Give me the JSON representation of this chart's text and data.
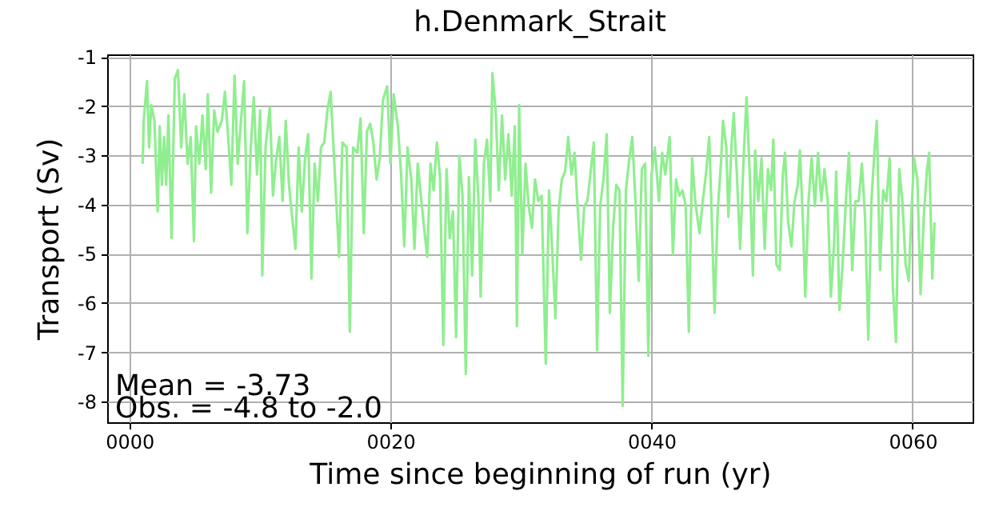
{
  "chart_data": {
    "type": "line",
    "title": "h.Denmark_Strait",
    "xlabel": "Time since beginning of run (yr)",
    "ylabel": "Transport (Sv)",
    "annotations": [
      "Mean = -3.73",
      "Obs. = -4.8 to -2.0"
    ],
    "xlim": [
      -1.7,
      64.6
    ],
    "ylim": [
      -8.42,
      -0.95
    ],
    "xticks": [
      {
        "value": 0,
        "label": "0000"
      },
      {
        "value": 20,
        "label": "0020"
      },
      {
        "value": 40,
        "label": "0040"
      },
      {
        "value": 60,
        "label": "0060"
      }
    ],
    "yticks": [
      -8,
      -7,
      -6,
      -5,
      -4,
      -3,
      -2,
      -1
    ],
    "grid": true,
    "line_style": "solid",
    "series": [
      {
        "color": "#90ee90",
        "x": [
          1.02,
          1.1,
          1.35,
          1.51,
          1.68,
          1.92,
          2.17,
          2.33,
          2.49,
          2.66,
          2.82,
          2.99,
          3.23,
          3.48,
          3.72,
          3.97,
          4.21,
          4.46,
          4.7,
          4.95,
          5.11,
          5.36,
          5.6,
          5.85,
          6.01,
          6.26,
          6.5,
          6.75,
          7.08,
          7.32,
          7.57,
          7.81,
          8.06,
          8.3,
          8.55,
          8.79,
          9.04,
          9.28,
          9.53,
          9.78,
          10.02,
          10.18,
          10.43,
          10.76,
          11.0,
          11.25,
          11.49,
          11.74,
          11.98,
          12.23,
          12.47,
          12.72,
          12.97,
          13.21,
          13.46,
          13.7,
          13.95,
          14.19,
          14.44,
          14.68,
          14.93,
          15.17,
          15.42,
          15.66,
          15.91,
          16.07,
          16.32,
          16.65,
          16.89,
          17.14,
          17.46,
          17.71,
          17.96,
          18.2,
          18.45,
          18.69,
          18.94,
          19.18,
          19.43,
          19.75,
          20.0,
          20.25,
          20.57,
          20.82,
          21.06,
          21.31,
          21.6,
          21.84,
          22.09,
          22.33,
          22.58,
          22.82,
          23.07,
          23.31,
          23.56,
          23.8,
          24.05,
          24.3,
          24.54,
          24.79,
          25.03,
          25.28,
          25.52,
          25.77,
          26.01,
          26.26,
          26.5,
          26.75,
          26.91,
          27.16,
          27.4,
          27.65,
          27.81,
          28.06,
          28.3,
          28.55,
          28.79,
          29.04,
          29.29,
          29.53,
          29.69,
          29.86,
          30.1,
          30.35,
          30.59,
          30.84,
          31.08,
          31.33,
          31.58,
          31.9,
          32.15,
          32.39,
          32.64,
          32.88,
          33.13,
          33.38,
          33.62,
          33.87,
          34.11,
          34.36,
          34.6,
          34.85,
          35.09,
          35.34,
          35.58,
          35.83,
          36.07,
          36.32,
          36.57,
          36.81,
          37.06,
          37.3,
          37.55,
          37.79,
          38.04,
          38.28,
          38.53,
          38.77,
          39.02,
          39.26,
          39.51,
          39.76,
          40.0,
          40.25,
          40.57,
          40.82,
          41.06,
          41.39,
          41.64,
          41.88,
          42.13,
          42.37,
          42.62,
          42.86,
          43.11,
          43.35,
          43.68,
          43.93,
          44.17,
          44.42,
          44.58,
          44.83,
          45.07,
          45.32,
          45.48,
          45.73,
          45.89,
          46.14,
          46.3,
          46.54,
          46.79,
          47.04,
          47.28,
          47.53,
          47.77,
          47.94,
          48.18,
          48.43,
          48.67,
          48.92,
          49.16,
          49.33,
          49.57,
          49.82,
          50.06,
          50.23,
          50.47,
          50.72,
          50.96,
          51.21,
          51.37,
          51.62,
          51.78,
          52.03,
          52.27,
          52.52,
          52.76,
          53.01,
          53.25,
          53.5,
          53.74,
          53.99,
          54.15,
          54.4,
          54.64,
          54.89,
          55.13,
          55.38,
          55.62,
          55.87,
          56.12,
          56.36,
          56.61,
          56.85,
          57.1,
          57.26,
          57.51,
          57.75,
          58.0,
          58.24,
          58.49,
          58.73,
          58.98,
          59.22,
          59.47,
          59.71,
          59.88,
          60.12,
          60.37,
          60.61,
          60.86,
          61.11,
          61.27,
          61.51,
          61.68
        ],
        "values": [
          -3.17,
          -2.3,
          -1.49,
          -2.84,
          -1.98,
          -2.3,
          -4.14,
          -2.41,
          -3.6,
          -2.63,
          -3.6,
          -2.19,
          -4.68,
          -1.44,
          -1.27,
          -2.84,
          -1.76,
          -3.17,
          -2.63,
          -4.74,
          -2.41,
          -3.17,
          -2.19,
          -3.28,
          -1.76,
          -3.76,
          -2.09,
          -2.52,
          -2.3,
          -1.71,
          -2.63,
          -3.6,
          -1.38,
          -3.17,
          -2.3,
          -1.49,
          -4.58,
          -2.95,
          -1.82,
          -3.39,
          -2.09,
          -5.44,
          -2.84,
          -2.03,
          -3.82,
          -3.06,
          -2.63,
          -3.93,
          -2.3,
          -3.6,
          -4.25,
          -4.9,
          -2.84,
          -4.14,
          -3.06,
          -2.57,
          -5.5,
          -3.17,
          -3.93,
          -2.84,
          -2.74,
          -2.09,
          -1.71,
          -2.95,
          -4.25,
          -5.06,
          -2.74,
          -2.84,
          -6.58,
          -2.84,
          -2.95,
          -2.25,
          -4.58,
          -2.52,
          -2.36,
          -2.74,
          -3.49,
          -3.06,
          -1.87,
          -1.6,
          -3.17,
          -1.76,
          -2.41,
          -3.39,
          -4.85,
          -2.84,
          -3.49,
          -4.9,
          -3.17,
          -3.82,
          -4.47,
          -5.06,
          -3.17,
          -3.71,
          -2.74,
          -3.44,
          -6.85,
          -3.28,
          -4.68,
          -4.14,
          -6.69,
          -3.01,
          -3.82,
          -7.44,
          -3.44,
          -5.44,
          -2.68,
          -3.93,
          -5.87,
          -3.17,
          -2.68,
          -3.93,
          -1.33,
          -2.09,
          -3.71,
          -2.19,
          -3.49,
          -2.57,
          -3.82,
          -2.41,
          -6.47,
          -1.98,
          -5.01,
          -3.17,
          -4.03,
          -4.47,
          -3.49,
          -3.93,
          -3.82,
          -7.23,
          -3.71,
          -4.9,
          -6.31,
          -4.14,
          -3.49,
          -3.33,
          -2.63,
          -3.39,
          -2.95,
          -4.14,
          -5.12,
          -4.03,
          -3.93,
          -3.33,
          -2.74,
          -6.96,
          -4.03,
          -3.49,
          -2.57,
          -6.2,
          -4.47,
          -3.6,
          -3.71,
          -8.09,
          -3.71,
          -3.11,
          -2.63,
          -3.93,
          -5.55,
          -3.28,
          -3.17,
          -7.07,
          -3.39,
          -2.84,
          -3.93,
          -2.95,
          -3.39,
          -2.63,
          -5.01,
          -3.49,
          -3.82,
          -3.71,
          -4.03,
          -6.58,
          -3.06,
          -3.93,
          -4.58,
          -3.93,
          -3.39,
          -2.63,
          -3.93,
          -6.2,
          -4.14,
          -3.17,
          -2.3,
          -2.84,
          -4.25,
          -2.74,
          -2.14,
          -3.39,
          -4.9,
          -3.17,
          -1.82,
          -3.39,
          -5.44,
          -2.9,
          -3.93,
          -3.06,
          -4.9,
          -3.28,
          -3.71,
          -2.68,
          -5.22,
          -5.33,
          -3.39,
          -2.95,
          -4.36,
          -4.85,
          -3.93,
          -3.6,
          -2.9,
          -4.47,
          -5.87,
          -3.93,
          -3.06,
          -4.03,
          -2.95,
          -3.93,
          -3.28,
          -3.93,
          -5.87,
          -4.79,
          -3.33,
          -6.14,
          -5.22,
          -3.93,
          -2.95,
          -5.33,
          -3.93,
          -3.93,
          -3.17,
          -4.25,
          -6.74,
          -3.93,
          -2.84,
          -2.3,
          -5.33,
          -3.71,
          -3.93,
          -3.06,
          -5.66,
          -6.79,
          -3.28,
          -3.93,
          -5.22,
          -5.55,
          -4.36,
          -3.06,
          -3.49,
          -5.82,
          -4.25,
          -3.28,
          -2.95,
          -5.5,
          -4.36
        ]
      }
    ]
  }
}
